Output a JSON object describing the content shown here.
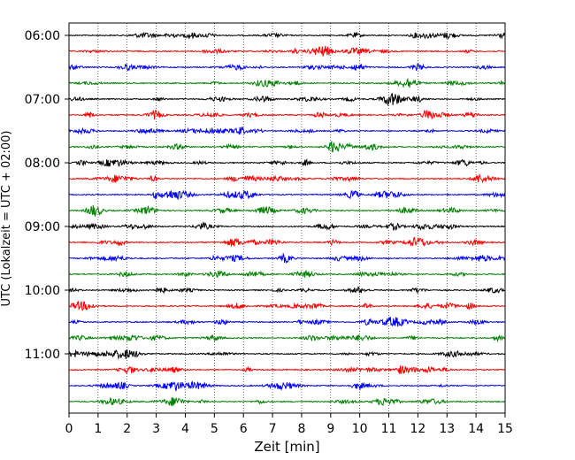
{
  "chart_data": {
    "type": "line",
    "xlabel": "Zeit  [min]",
    "ylabel": "UTC (Lokalzeit = UTC + 02:00)",
    "xlim": [
      0,
      15
    ],
    "x_ticks": [
      0,
      1,
      2,
      3,
      4,
      5,
      6,
      7,
      8,
      9,
      10,
      11,
      12,
      13,
      14,
      15
    ],
    "y_tick_labels": [
      "06:00",
      "07:00",
      "08:00",
      "09:00",
      "10:00",
      "11:00"
    ],
    "trace_start_times": [
      "06:00",
      "06:15",
      "06:30",
      "06:45",
      "07:00",
      "07:15",
      "07:30",
      "07:45",
      "08:00",
      "08:15",
      "08:30",
      "08:45",
      "09:00",
      "09:15",
      "09:30",
      "09:45",
      "10:00",
      "10:15",
      "10:30",
      "10:45",
      "11:00",
      "11:15",
      "11:30",
      "11:45"
    ],
    "trace_colors": [
      "#000000",
      "#ff0000",
      "#0000ff",
      "#008000"
    ],
    "grid": {
      "x": "dotted",
      "y": false
    }
  }
}
